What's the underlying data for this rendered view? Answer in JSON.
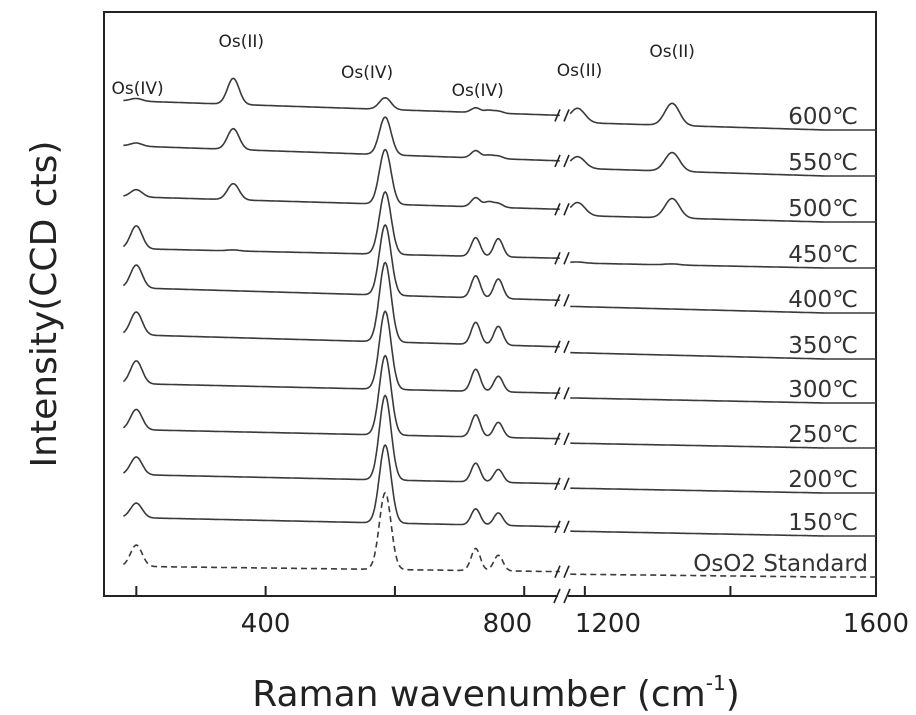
{
  "chart_data": {
    "type": "line",
    "title": "",
    "xlabel": "Raman wavenumber (cm",
    "xlabel_sup": "-1",
    "xlabel_close": ")",
    "ylabel": "Intensity(CCD cts)",
    "x_break": [
      860,
      1170
    ],
    "xlim_left": [
      150,
      860
    ],
    "xlim_right": [
      1170,
      1600
    ],
    "x_ticks": [
      {
        "value": 200,
        "label": ""
      },
      {
        "value": 400,
        "label": "400"
      },
      {
        "value": 600,
        "label": ""
      },
      {
        "value": 800,
        "label": "800"
      },
      {
        "value": 1200,
        "label": "1200"
      },
      {
        "value": 1400,
        "label": ""
      },
      {
        "value": 1600,
        "label": "1600"
      }
    ],
    "peak_annotations": [
      {
        "label": "Os(IV)",
        "x": 205
      },
      {
        "label": "Os(II)",
        "x": 353
      },
      {
        "label": "Os(IV)",
        "x": 560
      },
      {
        "label": "Os(IV)",
        "x": 725
      },
      {
        "label": "Os(II)",
        "x": 1190
      },
      {
        "label": "Os(II)",
        "x": 1320
      }
    ],
    "series": [
      {
        "name": "600℃",
        "style": "solid",
        "peaks": [
          [
            200,
            0.1
          ],
          [
            350,
            1.0
          ],
          [
            585,
            0.45
          ],
          [
            725,
            0.18
          ],
          [
            745,
            0.1
          ],
          [
            760,
            0.08
          ],
          [
            1190,
            0.55
          ],
          [
            1320,
            0.85
          ]
        ]
      },
      {
        "name": "550℃",
        "style": "solid",
        "peaks": [
          [
            200,
            0.12
          ],
          [
            350,
            0.8
          ],
          [
            585,
            1.45
          ],
          [
            725,
            0.28
          ],
          [
            745,
            0.12
          ],
          [
            760,
            0.1
          ],
          [
            1190,
            0.45
          ],
          [
            1320,
            0.72
          ]
        ]
      },
      {
        "name": "500℃",
        "style": "solid",
        "peaks": [
          [
            200,
            0.28
          ],
          [
            350,
            0.62
          ],
          [
            585,
            2.1
          ],
          [
            725,
            0.35
          ],
          [
            745,
            0.2
          ],
          [
            760,
            0.15
          ],
          [
            1190,
            0.5
          ],
          [
            1320,
            0.75
          ]
        ]
      },
      {
        "name": "450℃",
        "style": "solid",
        "peaks": [
          [
            200,
            0.88
          ],
          [
            350,
            0.04
          ],
          [
            585,
            2.4
          ],
          [
            725,
            0.72
          ],
          [
            760,
            0.7
          ],
          [
            1190,
            0.04
          ],
          [
            1320,
            0.04
          ]
        ]
      },
      {
        "name": "400℃",
        "style": "solid",
        "peaks": [
          [
            200,
            0.88
          ],
          [
            585,
            2.7
          ],
          [
            725,
            0.85
          ],
          [
            760,
            0.75
          ]
        ]
      },
      {
        "name": "350℃",
        "style": "solid",
        "peaks": [
          [
            200,
            0.88
          ],
          [
            585,
            3.05
          ],
          [
            725,
            0.85
          ],
          [
            760,
            0.72
          ]
        ]
      },
      {
        "name": "300℃",
        "style": "solid",
        "peaks": [
          [
            200,
            0.88
          ],
          [
            585,
            3.0
          ],
          [
            725,
            0.85
          ],
          [
            760,
            0.6
          ]
        ]
      },
      {
        "name": "250℃",
        "style": "solid",
        "peaks": [
          [
            200,
            0.78
          ],
          [
            585,
            3.05
          ],
          [
            725,
            0.85
          ],
          [
            760,
            0.58
          ]
        ]
      },
      {
        "name": "200℃",
        "style": "solid",
        "peaks": [
          [
            200,
            0.68
          ],
          [
            585,
            3.25
          ],
          [
            725,
            0.72
          ],
          [
            760,
            0.5
          ]
        ]
      },
      {
        "name": "150℃",
        "style": "solid",
        "peaks": [
          [
            200,
            0.56
          ],
          [
            585,
            3.0
          ],
          [
            725,
            0.62
          ],
          [
            760,
            0.48
          ]
        ]
      },
      {
        "name": "OsO2  Standard",
        "style": "dashed",
        "peaks": [
          [
            200,
            0.82
          ],
          [
            585,
            2.95
          ],
          [
            725,
            0.85
          ],
          [
            760,
            0.6
          ]
        ]
      }
    ]
  }
}
